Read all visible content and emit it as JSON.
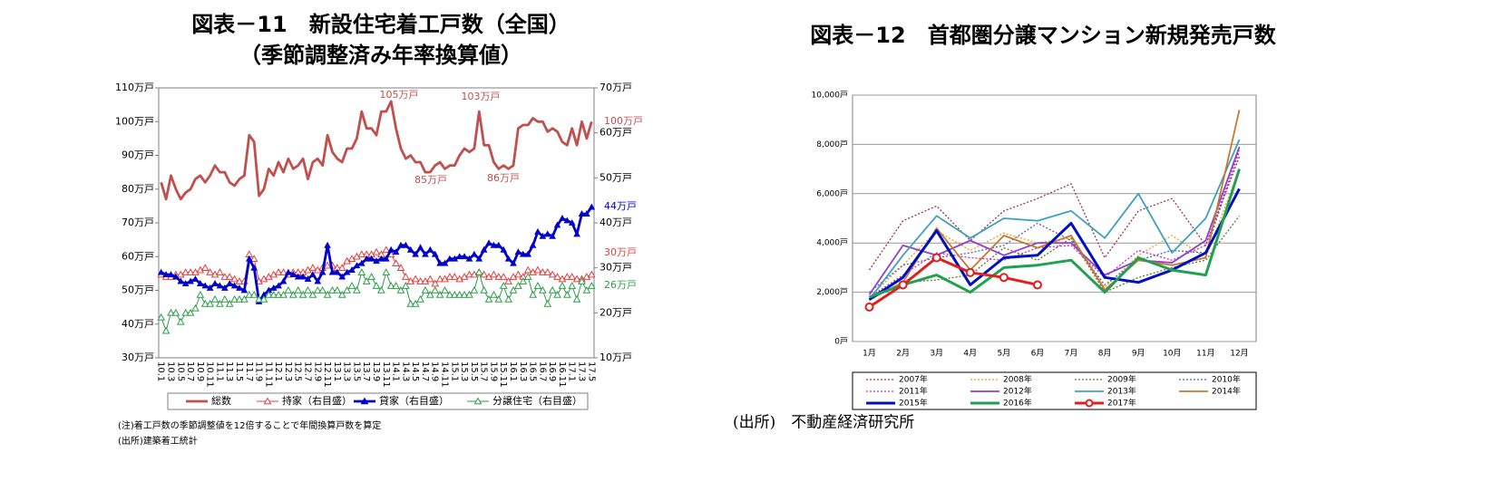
{
  "chart_data": [
    {
      "type": "line",
      "title": "図表－11　新設住宅着工戸数（全国）",
      "subtitle": "（季節調整済み年率換算値）",
      "categories": [
        "10.1",
        null,
        "10.3",
        null,
        "10.5",
        null,
        "10.7",
        null,
        "10.9",
        null,
        "10.11",
        null,
        "11.1",
        null,
        "11.3",
        null,
        "11.5",
        null,
        "11.7",
        null,
        "11.9",
        null,
        "11.11",
        null,
        "12.1",
        null,
        "12.3",
        null,
        "12.5",
        null,
        "12.7",
        null,
        "12.9",
        null,
        "12.11",
        null,
        "13.1",
        null,
        "13.3",
        null,
        "13.5",
        null,
        "13.7",
        null,
        "13.9",
        null,
        "13.11",
        null,
        "14.1",
        null,
        "14.3",
        null,
        "14.5",
        null,
        "14.7",
        null,
        "14.9",
        null,
        "14.11",
        null,
        "15.1",
        null,
        "15.3",
        null,
        "15.5",
        null,
        "15.7",
        null,
        "15.9",
        null,
        "15.11",
        null,
        "16.1",
        null,
        "16.3",
        null,
        "16.5",
        null,
        "16.7",
        null,
        "16.9",
        null,
        "16.11",
        null,
        "17.1",
        null,
        "17.3",
        null,
        "17.5"
      ],
      "ylim": [
        30,
        110
      ],
      "yticks": [
        {
          "value": 30,
          "label": "30万戸"
        },
        {
          "value": 40,
          "label": "40万戸"
        },
        {
          "value": 50,
          "label": "50万戸"
        },
        {
          "value": 60,
          "label": "60万戸"
        },
        {
          "value": 70,
          "label": "70万戸"
        },
        {
          "value": 80,
          "label": "80万戸"
        },
        {
          "value": 90,
          "label": "90万戸"
        },
        {
          "value": 100,
          "label": "100万戸"
        },
        {
          "value": 110,
          "label": "110万戸"
        }
      ],
      "y2lim": [
        10,
        70
      ],
      "y2ticks": [
        {
          "value": 10,
          "label": "10万戸"
        },
        {
          "value": 20,
          "label": "20万戸"
        },
        {
          "value": 30,
          "label": "30万戸"
        },
        {
          "value": 40,
          "label": "40万戸"
        },
        {
          "value": 50,
          "label": "50万戸"
        },
        {
          "value": 60,
          "label": "60万戸"
        },
        {
          "value": 70,
          "label": "70万戸"
        }
      ],
      "grid": false,
      "series": [
        {
          "name": "総数",
          "color": "#c0504d",
          "style": "bold",
          "marker": "none",
          "values": [
            82,
            77,
            84,
            80,
            77,
            79,
            80,
            83,
            84,
            82,
            84,
            87,
            85,
            85,
            82,
            81,
            83,
            84,
            96,
            94,
            78,
            80,
            86,
            84,
            88,
            85,
            89,
            86,
            87,
            89,
            83,
            88,
            89,
            87,
            96,
            91,
            89,
            88,
            92,
            92,
            95,
            103,
            98,
            98,
            96,
            103,
            103,
            106,
            98,
            92,
            89,
            90,
            88,
            88,
            85,
            85,
            87,
            88,
            86,
            87,
            87,
            90,
            92,
            91,
            92,
            103,
            93,
            93,
            88,
            86,
            87,
            86,
            87,
            98,
            99,
            99,
            101,
            100,
            100,
            97,
            98,
            97,
            94,
            93,
            98,
            93,
            100,
            95,
            100
          ]
        },
        {
          "name": "持家（右目盛）",
          "color": "#e04040",
          "style": "solid",
          "marker": "triangle-open",
          "axis": "y2",
          "values": [
            28.5,
            28,
            28,
            28.5,
            28.5,
            29,
            29,
            29,
            29.5,
            30,
            29,
            28.5,
            29,
            28,
            28,
            27.5,
            27,
            27,
            33,
            32,
            27,
            27.5,
            28,
            28.5,
            29,
            29,
            28.5,
            29,
            29,
            29,
            29.5,
            30,
            29.5,
            30,
            30.5,
            30.5,
            30,
            30,
            31.5,
            32,
            32.5,
            33,
            33,
            33,
            33.5,
            33,
            34,
            33,
            31,
            30,
            28,
            27,
            27.5,
            27,
            27,
            27.5,
            26.5,
            27.5,
            27.5,
            28,
            28,
            27.5,
            28,
            28.5,
            28.5,
            29,
            28.5,
            28,
            28.5,
            28,
            28,
            27,
            28,
            28.5,
            28,
            29.5,
            29,
            29.5,
            29,
            29,
            28.5,
            28,
            27.5,
            28,
            28,
            27.5,
            27.5,
            28,
            28.5
          ]
        },
        {
          "name": "貸家（右目盛）",
          "color": "#0000cc",
          "style": "bold",
          "marker": "triangle",
          "axis": "y2",
          "values": [
            29,
            28.5,
            28.5,
            28,
            27,
            26.5,
            27,
            27.5,
            26.5,
            26,
            25.5,
            26.5,
            26,
            25.5,
            26.5,
            26,
            25.5,
            25,
            32,
            30,
            22.5,
            24,
            25,
            25.5,
            26,
            27,
            29,
            28.5,
            28,
            28,
            27.5,
            28.5,
            27,
            29,
            35,
            29,
            29,
            28,
            29,
            29.5,
            30.5,
            31,
            32,
            32,
            31.5,
            32,
            32,
            34,
            33.5,
            35,
            35,
            34,
            33,
            34.5,
            33,
            34,
            33,
            31,
            31,
            32,
            32,
            32.5,
            32.5,
            32,
            33,
            32,
            34,
            35.5,
            35,
            35,
            34,
            32,
            31,
            33.5,
            33,
            33,
            35,
            38,
            37,
            37.5,
            37,
            39.5,
            41,
            40.5,
            40,
            37.5,
            42,
            42,
            43.5
          ]
        },
        {
          "name": "分譲住宅（右目盛）",
          "color": "#2e9e4a",
          "style": "solid",
          "marker": "triangle-open",
          "axis": "y2",
          "values": [
            19,
            16,
            20,
            20,
            18,
            20,
            20,
            21,
            24,
            22,
            22,
            23,
            22,
            23,
            22,
            23,
            23,
            23,
            24,
            24,
            23,
            23,
            24,
            24,
            24,
            24,
            25,
            24,
            25,
            24,
            25,
            24,
            25,
            25,
            24,
            25,
            25,
            24,
            25,
            26,
            25,
            29,
            27,
            28,
            26,
            25,
            29,
            26,
            26,
            25,
            26,
            22,
            22,
            23,
            25,
            24,
            25,
            24,
            25,
            24,
            24,
            24,
            24,
            24,
            25,
            29,
            25,
            23,
            24,
            23,
            26,
            23,
            25,
            26,
            27,
            28,
            24,
            26,
            25,
            22,
            25,
            24,
            26,
            24,
            26,
            23,
            27,
            25,
            26
          ]
        }
      ],
      "annotations": [
        "105万戸",
        "103万戸",
        "85万戸",
        "86万戸",
        "100万戸",
        "44万戸",
        "30万戸",
        "26万戸"
      ],
      "notes": [
        "(注)着工戸数の季節調整値を12倍することで年間換算戸数を算定",
        "(出所)建築着工統計"
      ]
    },
    {
      "type": "line",
      "title": "図表－12　首都圏分譲マンション新規発売戸数",
      "categories": [
        "1月",
        "2月",
        "3月",
        "4月",
        "5月",
        "6月",
        "7月",
        "8月",
        "9月",
        "10月",
        "11月",
        "12月"
      ],
      "ylim": [
        0,
        10000
      ],
      "yticks": [
        {
          "value": 0,
          "label": "0戸"
        },
        {
          "value": 2000,
          "label": "2,000戸"
        },
        {
          "value": 4000,
          "label": "4,000戸"
        },
        {
          "value": 6000,
          "label": "6,000戸"
        },
        {
          "value": 8000,
          "label": "8,000戸"
        },
        {
          "value": 10000,
          "label": "10,000戸"
        }
      ],
      "grid": true,
      "series": [
        {
          "name": "2007年",
          "color": "#a0304a",
          "style": "dotted",
          "marker": "none",
          "values": [
            2900,
            4900,
            5500,
            4100,
            5300,
            5800,
            6400,
            3400,
            5300,
            5800,
            3900,
            7500
          ]
        },
        {
          "name": "2008年",
          "color": "#e8a020",
          "style": "dotted",
          "marker": "none",
          "values": [
            1800,
            3100,
            4500,
            3700,
            4400,
            4000,
            4200,
            2200,
            3500,
            4300,
            3400,
            7000
          ]
        },
        {
          "name": "2009年",
          "color": "#5a7a30",
          "style": "dotted",
          "marker": "none",
          "values": [
            1700,
            2400,
            2500,
            2700,
            3800,
            3300,
            4200,
            2000,
            2600,
            3000,
            3300,
            5100
          ]
        },
        {
          "name": "2010年",
          "color": "#4a6aa8",
          "style": "dotted",
          "marker": "none",
          "values": [
            2000,
            3100,
            3400,
            3600,
            3900,
            4800,
            4100,
            2300,
            3300,
            3700,
            3600,
            7800
          ]
        },
        {
          "name": "2011年",
          "color": "#c030c0",
          "style": "dotted",
          "marker": "none",
          "values": [
            1800,
            2700,
            3600,
            3400,
            3300,
            3800,
            3900,
            2600,
            3700,
            3300,
            3900,
            7700
          ]
        },
        {
          "name": "2012年",
          "color": "#9040d0",
          "style": "solid",
          "marker": "none",
          "values": [
            1900,
            3900,
            3500,
            4100,
            3500,
            4000,
            4000,
            2700,
            3300,
            3200,
            4100,
            7900
          ]
        },
        {
          "name": "2013年",
          "color": "#40a0c0",
          "style": "solid",
          "marker": "none",
          "values": [
            1700,
            3500,
            5100,
            4200,
            5000,
            4900,
            5300,
            4200,
            6000,
            3600,
            5000,
            8200
          ]
        },
        {
          "name": "2014年",
          "color": "#c87830",
          "style": "solid",
          "marker": "none",
          "values": [
            1700,
            2400,
            4600,
            2900,
            4300,
            3800,
            4300,
            2100,
            3300,
            3100,
            3400,
            9400
          ]
        },
        {
          "name": "2015年",
          "color": "#0010c0",
          "style": "bold",
          "marker": "none",
          "values": [
            1700,
            2600,
            4500,
            2300,
            3400,
            3500,
            4800,
            2600,
            2400,
            2900,
            3600,
            6200
          ]
        },
        {
          "name": "2016年",
          "color": "#20a050",
          "style": "bold",
          "marker": "none",
          "values": [
            1800,
            2300,
            2700,
            2000,
            3000,
            3100,
            3300,
            2000,
            3400,
            2900,
            2700,
            7000
          ]
        },
        {
          "name": "2017年",
          "color": "#e02020",
          "style": "bold",
          "marker": "circle-open",
          "values": [
            1400,
            2300,
            3400,
            2800,
            2600,
            2300,
            null,
            null,
            null,
            null,
            null,
            null
          ]
        }
      ],
      "source": "(出所)　不動産経済研究所"
    }
  ]
}
